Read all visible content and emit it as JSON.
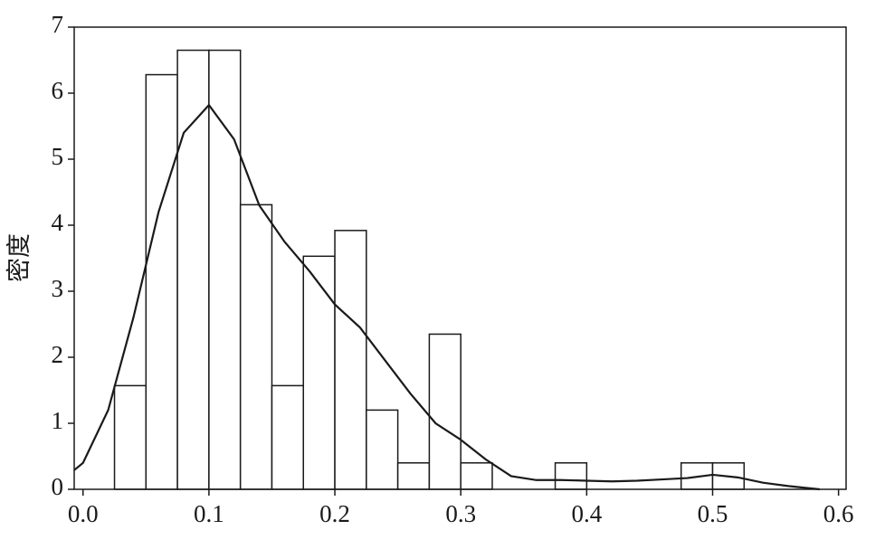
{
  "chart_data": {
    "type": "histogram",
    "ylabel": "密度",
    "bins": [
      0.025,
      0.05,
      0.075,
      0.1,
      0.125,
      0.15,
      0.175,
      0.2,
      0.225,
      0.25,
      0.275,
      0.3,
      0.325,
      0.35,
      0.375,
      0.4,
      0.425,
      0.45,
      0.475,
      0.5,
      0.525
    ],
    "counts": [
      1.57,
      6.28,
      6.65,
      6.65,
      4.31,
      1.57,
      3.53,
      3.92,
      1.2,
      0.4,
      2.35,
      0.4,
      0,
      0,
      0.4,
      0,
      0,
      0,
      0.4,
      0.4
    ],
    "bar_fill": "#ffffff",
    "bar_edge": "#1a1a1a",
    "kde": {
      "color": "#1a1a1a",
      "x": [
        -0.007,
        0.0,
        0.02,
        0.04,
        0.06,
        0.08,
        0.1,
        0.12,
        0.14,
        0.16,
        0.18,
        0.2,
        0.22,
        0.24,
        0.26,
        0.28,
        0.3,
        0.32,
        0.34,
        0.36,
        0.38,
        0.4,
        0.42,
        0.44,
        0.46,
        0.48,
        0.5,
        0.52,
        0.54,
        0.56,
        0.585
      ],
      "values": [
        0.29,
        0.4,
        1.2,
        2.6,
        4.2,
        5.4,
        5.82,
        5.3,
        4.3,
        3.75,
        3.3,
        2.8,
        2.45,
        1.95,
        1.45,
        1.0,
        0.75,
        0.45,
        0.2,
        0.14,
        0.14,
        0.13,
        0.12,
        0.13,
        0.15,
        0.17,
        0.22,
        0.18,
        0.1,
        0.05,
        0.0
      ]
    },
    "xlim": [
      -0.007,
      0.606
    ],
    "ylim": [
      0,
      7
    ],
    "xticks": [
      {
        "value": 0,
        "label": "0.0"
      },
      0.1,
      0.2,
      0.3,
      0.4,
      0.5,
      0.6
    ],
    "yticks": [
      0,
      1,
      2,
      3,
      4,
      5,
      6,
      7
    ]
  }
}
